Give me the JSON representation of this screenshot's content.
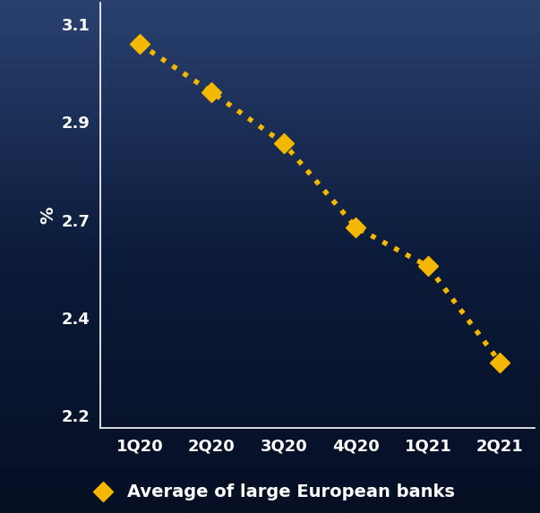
{
  "chart_data": {
    "type": "line",
    "y_label": "%",
    "categories": [
      "1Q20",
      "2Q20",
      "3Q20",
      "4Q20",
      "1Q21",
      "2Q21"
    ],
    "series": [
      {
        "name": "Average of large European banks",
        "color": "#f5b800",
        "marker": "diamond",
        "line_style": "dotted",
        "values": [
          3.055,
          2.944,
          2.826,
          2.633,
          2.543,
          2.322
        ]
      }
    ],
    "ylim": [
      2.17,
      3.15
    ],
    "yticks": [
      2.2,
      {
        "value": 2.425,
        "label": "2.4"
      },
      {
        "value": 2.65,
        "label": "2.7"
      },
      {
        "value": 2.875,
        "label": "2.9"
      },
      3.1
    ],
    "legend": "lower center"
  }
}
